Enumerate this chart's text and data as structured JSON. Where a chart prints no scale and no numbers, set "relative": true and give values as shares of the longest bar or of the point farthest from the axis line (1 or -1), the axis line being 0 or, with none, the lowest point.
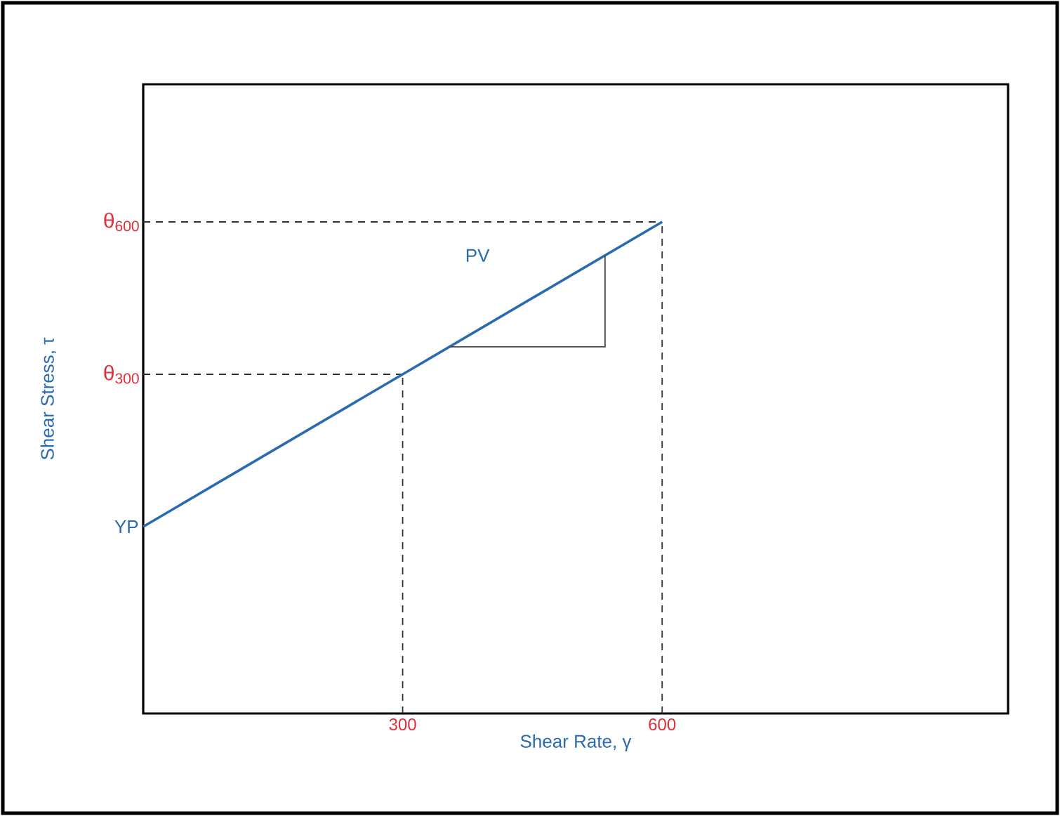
{
  "chart_data": {
    "type": "line",
    "xlabel": "Shear Rate, γ",
    "ylabel": "Shear Stress, τ",
    "relative": true,
    "x": [
      0,
      300,
      600
    ],
    "series": [
      {
        "color": "#2a6ab0",
        "values": [
          0.38,
          0.69,
          1
        ]
      }
    ],
    "xlim": [
      0,
      1000
    ],
    "xticks": [
      300,
      600
    ],
    "ref_lines": [
      {
        "axis": "y",
        "value": 1,
        "label": "θ$_{600}$",
        "line_style": "dashed",
        "color": "#333333"
      },
      {
        "axis": "y",
        "value": 0.69,
        "label": "θ$_{300}$",
        "line_style": "dashed",
        "color": "#333333"
      },
      {
        "axis": "x",
        "value": 300,
        "line_style": "dashed",
        "color": "#333333"
      },
      {
        "axis": "x",
        "value": 600,
        "line_style": "dashed",
        "color": "#333333"
      }
    ],
    "annotations": [
      {
        "text": "YP",
        "x": 0,
        "y": 0.38
      },
      "PV"
    ],
    "grid": false,
    "legend": false,
    "marker": "none",
    "line_style": "solid"
  }
}
